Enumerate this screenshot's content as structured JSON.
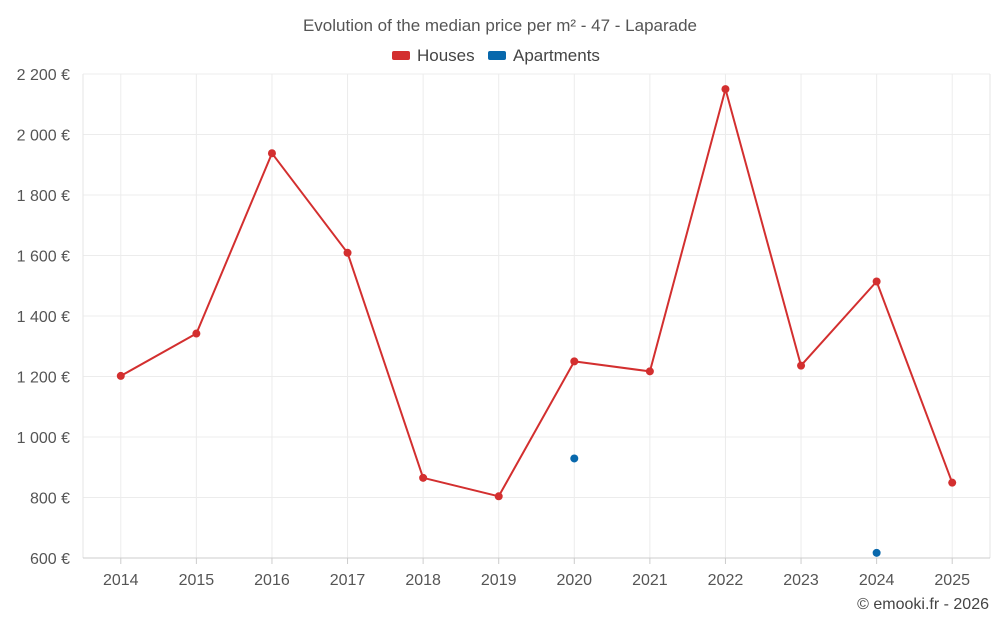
{
  "chart_data": {
    "type": "line",
    "title": "Evolution of the median price per m² - 47 - Laparade",
    "categories": [
      "2014",
      "2015",
      "2016",
      "2017",
      "2018",
      "2019",
      "2020",
      "2021",
      "2022",
      "2023",
      "2024",
      "2025"
    ],
    "series": [
      {
        "name": "Houses",
        "color": "#d32f2f",
        "values": [
          1202,
          1342,
          1938,
          1609,
          865,
          804,
          1250,
          1217,
          2150,
          1236,
          1514,
          849
        ]
      },
      {
        "name": "Apartments",
        "color": "#0868ac",
        "values": [
          null,
          null,
          null,
          null,
          null,
          null,
          929,
          null,
          null,
          null,
          617,
          null
        ]
      }
    ],
    "ylim": [
      600,
      2200
    ],
    "yticks": [
      600,
      800,
      1000,
      1200,
      1400,
      1600,
      1800,
      2000,
      2200
    ],
    "ytick_labels": [
      "600 €",
      "800 €",
      "1 000 €",
      "1 200 €",
      "1 400 €",
      "1 600 €",
      "1 800 €",
      "2 000 €",
      "2 200 €"
    ],
    "xlabel": "",
    "ylabel": "",
    "grid": true,
    "legend_position": "top-center"
  },
  "credit": "© emooki.fr - 2026"
}
